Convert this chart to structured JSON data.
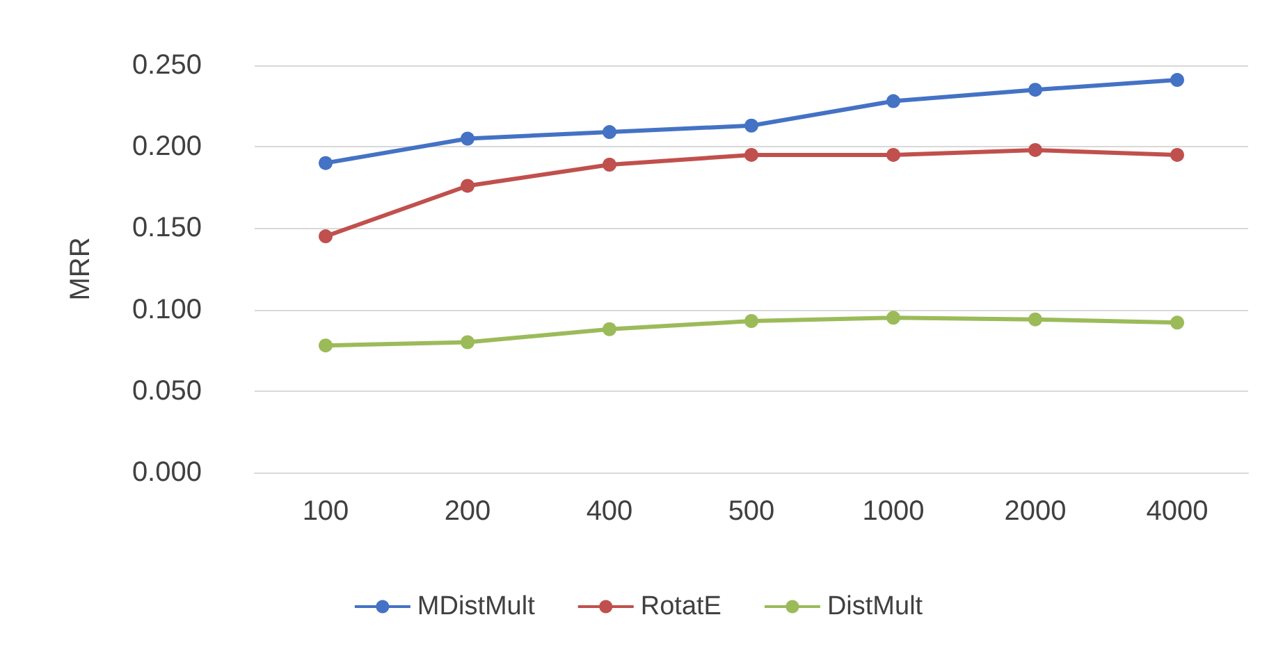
{
  "chart_data": {
    "type": "line",
    "ylabel": "MRR",
    "categories": [
      "100",
      "200",
      "400",
      "500",
      "1000",
      "2000",
      "4000"
    ],
    "series": [
      {
        "name": "MDistMult",
        "color": "#4472c4",
        "values": [
          0.19,
          0.205,
          0.209,
          0.213,
          0.228,
          0.235,
          0.241
        ]
      },
      {
        "name": "RotatE",
        "color": "#c0504d",
        "values": [
          0.145,
          0.176,
          0.189,
          0.195,
          0.195,
          0.198,
          0.195
        ]
      },
      {
        "name": "DistMult",
        "color": "#9bbb59",
        "values": [
          0.078,
          0.08,
          0.088,
          0.093,
          0.095,
          0.094,
          0.092
        ]
      }
    ],
    "ylim": [
      0,
      0.25
    ],
    "yticks": [
      {
        "value": 0,
        "label": "0.000"
      },
      {
        "value": 0.05,
        "label": "0.050"
      },
      {
        "value": 0.1,
        "label": "0.100"
      },
      {
        "value": 0.15,
        "label": "0.150"
      },
      {
        "value": 0.2,
        "label": "0.200"
      },
      {
        "value": 0.25,
        "label": "0.250"
      }
    ],
    "grid": "y",
    "legend": "bottom",
    "marker": "circle",
    "line_style": "solid"
  }
}
